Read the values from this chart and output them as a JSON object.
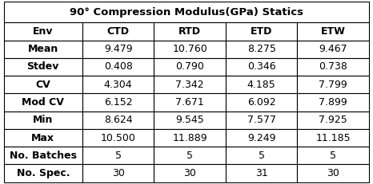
{
  "title": "90° Compression Modulus(GPa) Statics",
  "col_headers": [
    "Env",
    "CTD",
    "RTD",
    "ETD",
    "ETW"
  ],
  "rows": [
    [
      "Mean",
      "9.479",
      "10.760",
      "8.275",
      "9.467"
    ],
    [
      "Stdev",
      "0.408",
      "0.790",
      "0.346",
      "0.738"
    ],
    [
      "CV",
      "4.304",
      "7.342",
      "4.185",
      "7.799"
    ],
    [
      "Mod CV",
      "6.152",
      "7.671",
      "6.092",
      "7.899"
    ],
    [
      "Min",
      "8.624",
      "9.545",
      "7.577",
      "7.925"
    ],
    [
      "Max",
      "10.500",
      "11.889",
      "9.249",
      "11.185"
    ],
    [
      "No. Batches",
      "5",
      "5",
      "5",
      "5"
    ],
    [
      "No. Spec.",
      "30",
      "30",
      "31",
      "30"
    ]
  ],
  "bg_color": "#ffffff",
  "border_color": "#000000",
  "text_color": "#000000",
  "title_fontsize": 9.5,
  "header_fontsize": 9,
  "cell_fontsize": 9,
  "fig_width": 4.66,
  "fig_height": 2.31,
  "dpi": 100
}
